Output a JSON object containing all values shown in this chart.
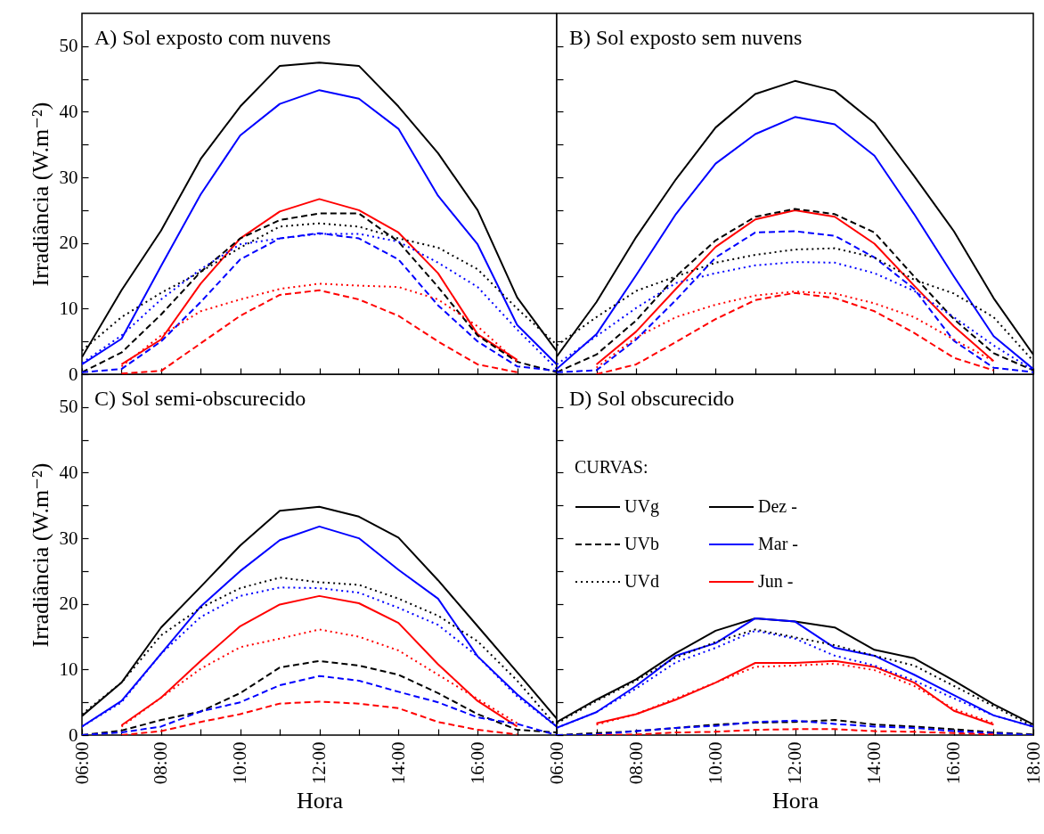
{
  "chart_data": [
    {
      "type": "line",
      "title": "A) Sol exposto com nuvens",
      "ylabel": "Irradiância (W.m⁻²)",
      "x": [
        6,
        7,
        8,
        9,
        10,
        11,
        12,
        13,
        14,
        15,
        16,
        17,
        18
      ],
      "xlim": [
        6,
        18
      ],
      "ylim": [
        0,
        55
      ],
      "xticks": [
        {
          "value": 6,
          "label": null
        },
        {
          "value": 7,
          "label": null
        },
        {
          "value": 8,
          "label": null
        },
        {
          "value": 9,
          "label": null
        },
        {
          "value": 10,
          "label": null
        },
        {
          "value": 11,
          "label": null
        },
        {
          "value": 12,
          "label": null
        },
        {
          "value": 13,
          "label": null
        },
        {
          "value": 14,
          "label": null
        },
        {
          "value": 15,
          "label": null
        },
        {
          "value": 16,
          "label": null
        },
        {
          "value": 17,
          "label": null
        },
        {
          "value": 18,
          "label": null
        }
      ],
      "yticks": [
        0,
        {
          "value": 5,
          "label": null
        },
        10,
        {
          "value": 15,
          "label": null
        },
        20,
        {
          "value": 25,
          "label": null
        },
        30,
        {
          "value": 35,
          "label": null
        },
        40,
        {
          "value": 45,
          "label": null
        },
        50
      ],
      "tick_labels": "y",
      "series": [
        {
          "color": "#000000",
          "line_style": "solid",
          "values": [
            2.6,
            12.8,
            21.9,
            32.8,
            40.8,
            47,
            47.5,
            47,
            40.8,
            33.7,
            25,
            11.7,
            3.5
          ]
        },
        {
          "color": "#0000ff",
          "line_style": "solid",
          "values": [
            1.5,
            5.4,
            16.5,
            27.4,
            36.4,
            41.2,
            43.3,
            42,
            37.4,
            27.2,
            19.8,
            7.5,
            1.5
          ]
        },
        {
          "color": "#ff0000",
          "line_style": "solid",
          "x": [
            7,
            8,
            9,
            10,
            11,
            12,
            13,
            14,
            15,
            16,
            17
          ],
          "values": [
            1.5,
            5.3,
            13.8,
            20.7,
            24.8,
            26.7,
            25,
            21.6,
            15.4,
            6.1,
            2.2
          ]
        },
        {
          "color": "#000000",
          "line_style": "dashed",
          "values": [
            0.3,
            3.3,
            9.1,
            15.6,
            20.7,
            23.5,
            24.5,
            24.5,
            20.2,
            13.3,
            5.9,
            1.9,
            0.3
          ]
        },
        {
          "color": "#0000ff",
          "line_style": "dashed",
          "values": [
            0.3,
            0.8,
            5,
            11,
            17.5,
            20.7,
            21.5,
            20.7,
            17.5,
            10.5,
            5,
            1.2,
            0.5
          ]
        },
        {
          "color": "#ff0000",
          "line_style": "dashed",
          "x": [
            7,
            8,
            9,
            10,
            11,
            12,
            13,
            14,
            15,
            16,
            17
          ],
          "values": [
            0.1,
            0.5,
            4.7,
            8.9,
            12.1,
            12.8,
            11.4,
            8.9,
            5,
            1.5,
            0.3
          ]
        },
        {
          "color": "#000000",
          "line_style": "dotted",
          "values": [
            3.6,
            8.7,
            12.4,
            15.6,
            19.3,
            22.5,
            23,
            22.5,
            20.7,
            19.3,
            16,
            10,
            4.5
          ]
        },
        {
          "color": "#0000ff",
          "line_style": "dotted",
          "values": [
            1.7,
            5.9,
            11.4,
            16,
            19.8,
            20.7,
            21.4,
            21.4,
            20.2,
            17,
            13.3,
            6.8,
            0.8
          ]
        },
        {
          "color": "#ff0000",
          "line_style": "dotted",
          "x": [
            7,
            8,
            9,
            10,
            11,
            12,
            13,
            14,
            15,
            16,
            17
          ],
          "values": [
            1.2,
            5.9,
            9.6,
            11.4,
            13,
            13.8,
            13.5,
            13.3,
            11.4,
            7.3,
            1.9
          ]
        }
      ]
    },
    {
      "type": "line",
      "title": "B) Sol exposto sem nuvens",
      "x": [
        6,
        7,
        8,
        9,
        10,
        11,
        12,
        13,
        14,
        15,
        16,
        17,
        18
      ],
      "xlim": [
        6,
        18
      ],
      "ylim": [
        0,
        55
      ],
      "xticks": [
        {
          "value": 6,
          "label": null
        },
        {
          "value": 7,
          "label": null
        },
        {
          "value": 8,
          "label": null
        },
        {
          "value": 9,
          "label": null
        },
        {
          "value": 10,
          "label": null
        },
        {
          "value": 11,
          "label": null
        },
        {
          "value": 12,
          "label": null
        },
        {
          "value": 13,
          "label": null
        },
        {
          "value": 14,
          "label": null
        },
        {
          "value": 15,
          "label": null
        },
        {
          "value": 16,
          "label": null
        },
        {
          "value": 17,
          "label": null
        },
        {
          "value": 18,
          "label": null
        }
      ],
      "yticks": [
        0,
        {
          "value": 5,
          "label": null
        },
        10,
        {
          "value": 15,
          "label": null
        },
        20,
        {
          "value": 25,
          "label": null
        },
        30,
        {
          "value": 35,
          "label": null
        },
        40,
        {
          "value": 45,
          "label": null
        },
        50
      ],
      "tick_labels": false,
      "series": [
        {
          "color": "#000000",
          "line_style": "solid",
          "values": [
            2.7,
            11,
            20.9,
            29.7,
            37.6,
            42.7,
            44.7,
            43.2,
            38.3,
            30.2,
            21.8,
            11.6,
            3
          ]
        },
        {
          "color": "#0000ff",
          "line_style": "solid",
          "values": [
            0.8,
            6.1,
            15.1,
            24.4,
            32.1,
            36.6,
            39.2,
            38.1,
            33.3,
            24.4,
            14.9,
            5.8,
            0.8
          ]
        },
        {
          "color": "#ff0000",
          "line_style": "solid",
          "x": [
            7,
            8,
            9,
            10,
            11,
            12,
            13,
            14,
            15,
            16,
            17
          ],
          "values": [
            1.5,
            6.5,
            13,
            19.4,
            23.6,
            25,
            24,
            19.9,
            13.5,
            7.3,
            2
          ]
        },
        {
          "color": "#000000",
          "line_style": "dashed",
          "values": [
            0.3,
            3,
            8.2,
            14.9,
            20.4,
            24,
            25.2,
            24.4,
            21.6,
            14.9,
            8.4,
            3.2,
            0.6
          ]
        },
        {
          "color": "#0000ff",
          "line_style": "dashed",
          "values": [
            0.3,
            0.6,
            5.3,
            11.3,
            17.8,
            21.6,
            21.8,
            21.1,
            17.8,
            13,
            5.1,
            1,
            0.3
          ]
        },
        {
          "color": "#ff0000",
          "line_style": "dashed",
          "x": [
            7,
            8,
            9,
            10,
            11,
            12,
            13,
            14,
            15,
            16,
            17
          ],
          "values": [
            0,
            1.5,
            4.9,
            8.4,
            11.3,
            12.4,
            11.6,
            9.6,
            6.3,
            2.5,
            0.6
          ]
        },
        {
          "color": "#000000",
          "line_style": "dotted",
          "values": [
            4.4,
            8.7,
            12.7,
            14.9,
            17,
            18.2,
            19,
            19.2,
            17.8,
            14.4,
            12.3,
            8.7,
            2
          ]
        },
        {
          "color": "#0000ff",
          "line_style": "dotted",
          "values": [
            1.5,
            5.8,
            10.1,
            13.9,
            15.4,
            16.6,
            17.1,
            17,
            15.4,
            12.7,
            8.7,
            4.4,
            0.6
          ]
        },
        {
          "color": "#ff0000",
          "line_style": "dotted",
          "x": [
            7,
            8,
            9,
            10,
            11,
            12,
            13,
            14,
            15,
            16,
            17
          ],
          "values": [
            1,
            5.6,
            8.7,
            10.6,
            12,
            12.6,
            12.3,
            10.8,
            8.7,
            5.3,
            2
          ]
        }
      ]
    },
    {
      "type": "line",
      "title": "C) Sol semi-obscurecido",
      "xlabel": "Hora",
      "ylabel": "Irradiância (W.m⁻²)",
      "x": [
        6,
        7,
        8,
        9,
        10,
        11,
        12,
        13,
        14,
        15,
        16,
        17,
        18
      ],
      "xlim": [
        6,
        18
      ],
      "ylim": [
        0,
        55
      ],
      "xticks": [
        {
          "value": 6,
          "label": "06:00"
        },
        {
          "value": 7,
          "label": null
        },
        {
          "value": 8,
          "label": "08:00"
        },
        {
          "value": 9,
          "label": null
        },
        {
          "value": 10,
          "label": "10:00"
        },
        {
          "value": 11,
          "label": null
        },
        {
          "value": 12,
          "label": "12:00"
        },
        {
          "value": 13,
          "label": null
        },
        {
          "value": 14,
          "label": "14:00"
        },
        {
          "value": 15,
          "label": null
        },
        {
          "value": 16,
          "label": "16:00"
        },
        {
          "value": 17,
          "label": null
        },
        {
          "value": 18,
          "label": null
        }
      ],
      "yticks": [
        0,
        {
          "value": 5,
          "label": null
        },
        10,
        {
          "value": 15,
          "label": null
        },
        20,
        {
          "value": 25,
          "label": null
        },
        30,
        {
          "value": 35,
          "label": null
        },
        40,
        {
          "value": 45,
          "label": null
        },
        50
      ],
      "series": [
        {
          "color": "#000000",
          "line_style": "solid",
          "values": [
            2.9,
            8,
            16.4,
            22.6,
            28.9,
            34.2,
            34.8,
            33.3,
            30.1,
            23.6,
            16.6,
            9.6,
            2.5
          ]
        },
        {
          "color": "#0000ff",
          "line_style": "solid",
          "values": [
            1.3,
            5.2,
            12.4,
            19.6,
            25,
            29.7,
            31.8,
            30,
            25.2,
            20.8,
            12,
            6.2,
            1.3
          ]
        },
        {
          "color": "#ff0000",
          "line_style": "solid",
          "x": [
            7,
            8,
            9,
            10,
            11,
            12,
            13,
            14,
            15,
            16,
            17
          ],
          "values": [
            1.5,
            5.7,
            11.3,
            16.6,
            19.9,
            21.2,
            20.1,
            17.1,
            10.8,
            5.2,
            1.3
          ]
        },
        {
          "color": "#000000",
          "line_style": "dashed",
          "values": [
            0,
            0.7,
            2.3,
            3.6,
            6.4,
            10.3,
            11.3,
            10.6,
            9.2,
            6.4,
            3.2,
            0.8,
            0.4
          ]
        },
        {
          "color": "#0000ff",
          "line_style": "dashed",
          "values": [
            0,
            0.4,
            1.3,
            3.6,
            5,
            7.6,
            9,
            8.3,
            6.6,
            5,
            2.7,
            1.7,
            0
          ]
        },
        {
          "color": "#ff0000",
          "line_style": "dashed",
          "x": [
            7,
            8,
            9,
            10,
            11,
            12,
            13,
            14,
            15,
            16,
            17
          ],
          "values": [
            0,
            0.6,
            2,
            3.2,
            4.8,
            5.1,
            4.8,
            4.1,
            2,
            0.8,
            0.1
          ]
        },
        {
          "color": "#000000",
          "line_style": "dotted",
          "values": [
            3.2,
            8,
            15.2,
            19.4,
            22.4,
            24,
            23.3,
            22.9,
            20.8,
            18.2,
            14.3,
            8.3,
            1.3
          ]
        },
        {
          "color": "#0000ff",
          "line_style": "dotted",
          "values": [
            1.3,
            5,
            12.4,
            18,
            21.2,
            22.5,
            22.4,
            21.7,
            19.4,
            16.8,
            12,
            5.9,
            1.3
          ]
        },
        {
          "color": "#ff0000",
          "line_style": "dotted",
          "x": [
            7,
            8,
            9,
            10,
            11,
            12,
            13,
            14,
            15,
            16,
            17
          ],
          "values": [
            1.3,
            5.7,
            10.1,
            13.4,
            14.7,
            16.1,
            15,
            12.9,
            9.2,
            5.5,
            1.8
          ]
        }
      ]
    },
    {
      "type": "line",
      "title": "D) Sol obscurecido",
      "xlabel": "Hora",
      "x": [
        6,
        7,
        8,
        9,
        10,
        11,
        12,
        13,
        14,
        15,
        16,
        17,
        18
      ],
      "xlim": [
        6,
        18
      ],
      "ylim": [
        0,
        55
      ],
      "xticks": [
        {
          "value": 6,
          "label": "06:00"
        },
        {
          "value": 7,
          "label": null
        },
        {
          "value": 8,
          "label": "08:00"
        },
        {
          "value": 9,
          "label": null
        },
        {
          "value": 10,
          "label": "10:00"
        },
        {
          "value": 11,
          "label": null
        },
        {
          "value": 12,
          "label": "12:00"
        },
        {
          "value": 13,
          "label": null
        },
        {
          "value": 14,
          "label": "14:00"
        },
        {
          "value": 15,
          "label": null
        },
        {
          "value": 16,
          "label": "16:00"
        },
        {
          "value": 17,
          "label": null
        },
        {
          "value": 18,
          "label": "18:00"
        }
      ],
      "yticks": [
        0,
        {
          "value": 5,
          "label": null
        },
        10,
        {
          "value": 15,
          "label": null
        },
        20,
        {
          "value": 25,
          "label": null
        },
        30,
        {
          "value": 35,
          "label": null
        },
        40,
        {
          "value": 45,
          "label": null
        },
        50
      ],
      "tick_labels": "x",
      "legend_title": "CURVAS:",
      "annotations": [
        "UVg",
        "UVb",
        "UVd",
        "Dez -",
        "Mar -",
        "Jun -"
      ],
      "series": [
        {
          "color": "#000000",
          "line_style": "solid",
          "values": [
            2,
            5.4,
            8.5,
            12.5,
            15.9,
            17.8,
            17.3,
            16.4,
            13,
            11.7,
            8.3,
            4.7,
            1.6
          ]
        },
        {
          "color": "#0000ff",
          "line_style": "solid",
          "values": [
            1.1,
            3.5,
            7.5,
            12.1,
            14,
            17.8,
            17.3,
            13.3,
            12.1,
            9.2,
            6.1,
            3,
            1.3
          ]
        },
        {
          "color": "#ff0000",
          "line_style": "solid",
          "x": [
            7,
            8,
            9,
            10,
            11,
            12,
            13,
            14,
            15,
            16,
            17
          ],
          "values": [
            1.8,
            3.2,
            5.4,
            8,
            11,
            11,
            11.3,
            10.4,
            8,
            3.7,
            1.6
          ]
        },
        {
          "color": "#000000",
          "line_style": "dashed",
          "values": [
            0,
            0.3,
            0.6,
            1.1,
            1.6,
            1.9,
            2,
            2.3,
            1.6,
            1.3,
            0.9,
            0.4,
            0.1
          ]
        },
        {
          "color": "#0000ff",
          "line_style": "dashed",
          "values": [
            0,
            0.1,
            0.6,
            1.1,
            1.4,
            2,
            2.2,
            1.7,
            1.3,
            1.1,
            0.6,
            0.3,
            0
          ]
        },
        {
          "color": "#ff0000",
          "line_style": "dashed",
          "x": [
            7,
            8,
            9,
            10,
            11,
            12,
            13,
            14,
            15,
            16,
            17
          ],
          "values": [
            0,
            0.1,
            0.4,
            0.5,
            0.8,
            0.9,
            0.9,
            0.6,
            0.5,
            0.3,
            0.1
          ]
        },
        {
          "color": "#000000",
          "line_style": "dotted",
          "values": [
            1.8,
            5.2,
            8.3,
            11.8,
            14.2,
            16.1,
            14.9,
            13.7,
            12.1,
            10.6,
            7.5,
            4.4,
            1.3
          ]
        },
        {
          "color": "#0000ff",
          "line_style": "dotted",
          "values": [
            1.1,
            3.5,
            7.1,
            11.1,
            13.3,
            15.9,
            14.7,
            12.1,
            10.6,
            8.3,
            5.6,
            3,
            1.3
          ]
        },
        {
          "color": "#ff0000",
          "line_style": "dotted",
          "x": [
            7,
            8,
            9,
            10,
            11,
            12,
            13,
            14,
            15,
            16,
            17
          ],
          "values": [
            1.6,
            3.2,
            5.6,
            8,
            10.4,
            10.6,
            10.9,
            9.9,
            7.5,
            4,
            1.8
          ]
        }
      ]
    }
  ]
}
